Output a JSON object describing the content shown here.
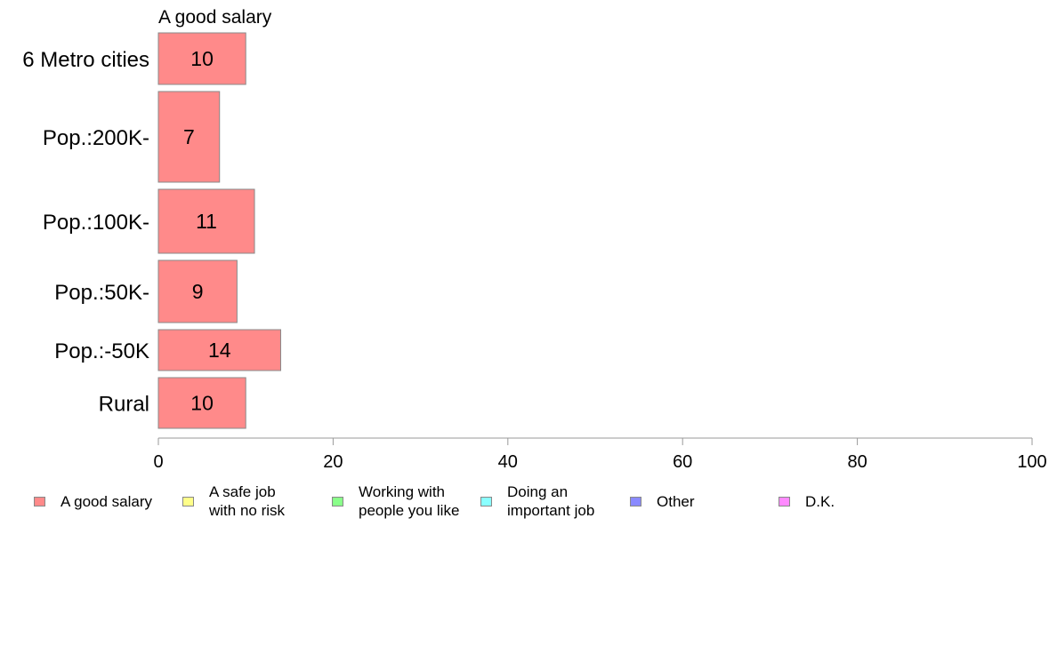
{
  "chart_data": {
    "type": "bar",
    "orientation": "horizontal",
    "stacked": true,
    "panel_title": "A good salary",
    "categories": [
      "6 Metro cities",
      "Pop.:200K-",
      "Pop.:100K-",
      "Pop.:50K-",
      "Pop.:-50K",
      "Rural"
    ],
    "series": [
      {
        "name": "A good salary",
        "values": [
          10,
          7,
          11,
          9,
          14,
          10
        ],
        "color": "#ff8a8a"
      }
    ],
    "value_labels": [
      "10",
      "7",
      "11",
      "9",
      "14",
      "10"
    ],
    "xlim": [
      0,
      100
    ],
    "x_ticks": [
      0,
      20,
      40,
      60,
      80,
      100
    ],
    "x_tick_labels": [
      "0",
      "20",
      "40",
      "60",
      "80",
      "100"
    ],
    "grid": false,
    "legend_position": "bottom",
    "legend": [
      {
        "label": "A good salary",
        "color": "#ff8a8a"
      },
      {
        "label": "A safe job\nwith no risk",
        "color": "#ffff8a"
      },
      {
        "label": "Working with\npeople you like",
        "color": "#8aff8a"
      },
      {
        "label": "Doing an\nimportant job",
        "color": "#8affff"
      },
      {
        "label": "Other",
        "color": "#8a8aff"
      },
      {
        "label": "D.K.",
        "color": "#ff8aff"
      }
    ]
  }
}
